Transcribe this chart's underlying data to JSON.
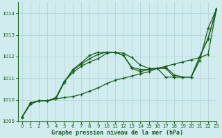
{
  "title": "Graphe pression niveau de la mer (hPa)",
  "background_color": "#d0ecee",
  "grid_color": "#b8d8dc",
  "line_color": "#1a5c1a",
  "xlim": [
    -0.5,
    23
  ],
  "ylim": [
    1009,
    1014.5
  ],
  "yticks": [
    1009,
    1010,
    1011,
    1012,
    1013,
    1014
  ],
  "xticks": [
    0,
    1,
    2,
    3,
    4,
    5,
    6,
    7,
    8,
    9,
    10,
    11,
    12,
    13,
    14,
    15,
    16,
    17,
    18,
    19,
    20,
    21,
    22,
    23
  ],
  "series": [
    [
      1009.2,
      1009.8,
      1009.95,
      1009.95,
      1010.05,
      1010.1,
      1010.15,
      1010.25,
      1010.4,
      1010.55,
      1010.75,
      1010.9,
      1011.0,
      1011.1,
      1011.2,
      1011.3,
      1011.45,
      1011.55,
      1011.65,
      1011.75,
      1011.85,
      1011.95,
      1012.1,
      1014.2
    ],
    [
      1009.2,
      1009.85,
      1009.95,
      1009.95,
      1010.05,
      1010.85,
      1011.25,
      1011.55,
      1011.75,
      1011.9,
      1012.15,
      1012.2,
      1012.15,
      1011.95,
      1011.6,
      1011.45,
      1011.45,
      1011.5,
      1011.15,
      1011.05,
      1011.05,
      1011.8,
      1013.3,
      1014.2
    ],
    [
      1009.2,
      1009.85,
      1009.95,
      1009.95,
      1010.05,
      1010.8,
      1011.4,
      1011.7,
      1012.05,
      1012.2,
      1012.2,
      1012.2,
      1012.05,
      1011.5,
      1011.4,
      1011.4,
      1011.45,
      1011.45,
      1011.05,
      1011.05,
      1011.05,
      1011.95,
      1012.85,
      1014.2
    ],
    [
      1009.2,
      1009.85,
      1009.95,
      1009.95,
      1010.1,
      1010.85,
      1011.35,
      1011.65,
      1011.9,
      1012.1,
      1012.2,
      1012.2,
      1012.05,
      1011.45,
      1011.3,
      1011.4,
      1011.45,
      1011.05,
      1011.05,
      1011.05,
      1011.05,
      1012.0,
      1012.8,
      1014.2
    ]
  ]
}
